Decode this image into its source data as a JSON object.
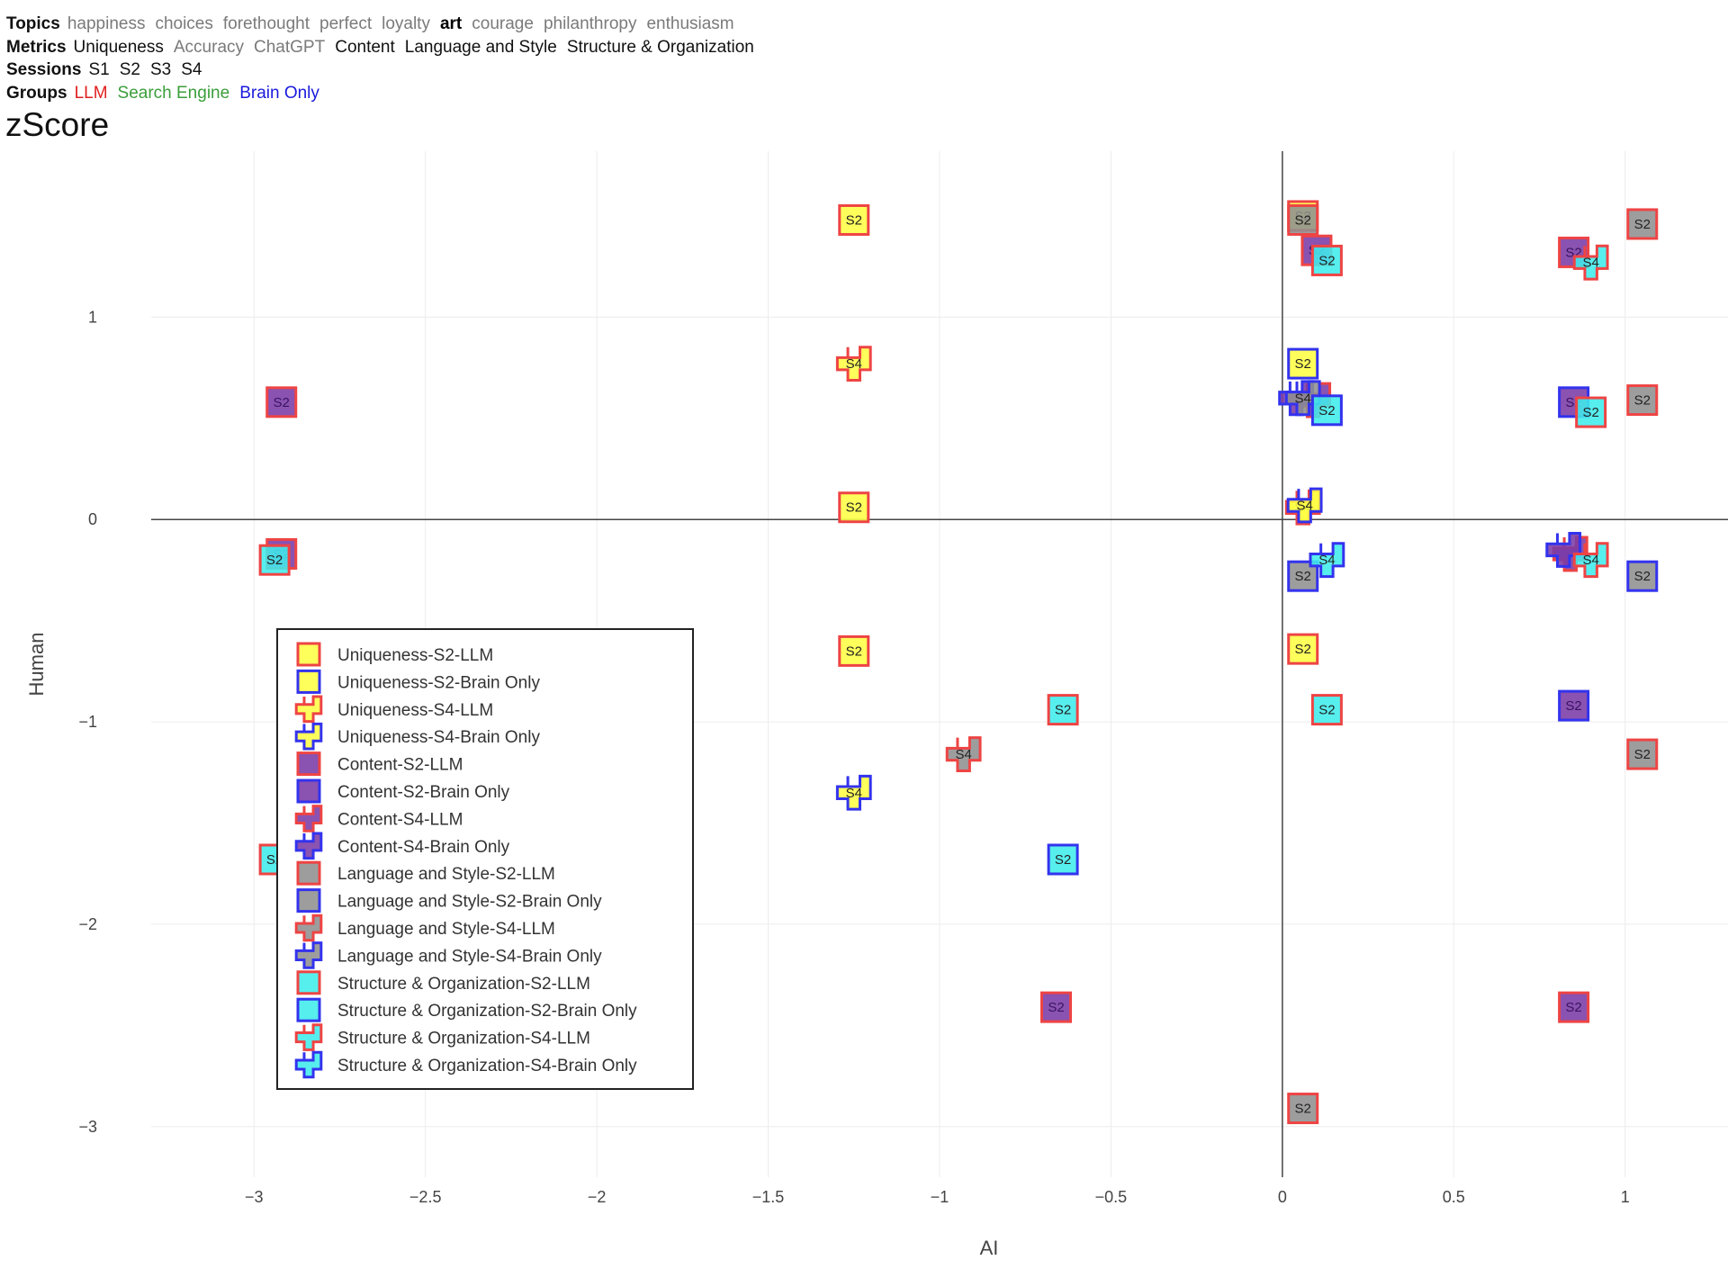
{
  "filters": {
    "topics": {
      "label": "Topics",
      "options": [
        {
          "text": "happiness",
          "state": "dim"
        },
        {
          "text": "choices",
          "state": "dim"
        },
        {
          "text": "forethought",
          "state": "dim"
        },
        {
          "text": "perfect",
          "state": "dim"
        },
        {
          "text": "loyalty",
          "state": "dim"
        },
        {
          "text": "art",
          "state": "bold"
        },
        {
          "text": "courage",
          "state": "dim"
        },
        {
          "text": "philanthropy",
          "state": "dim"
        },
        {
          "text": "enthusiasm",
          "state": "dim"
        }
      ]
    },
    "metrics": {
      "label": "Metrics",
      "options": [
        {
          "text": "Uniqueness",
          "state": "on"
        },
        {
          "text": "Accuracy",
          "state": "dim"
        },
        {
          "text": "ChatGPT",
          "state": "dim"
        },
        {
          "text": "Content",
          "state": "on"
        },
        {
          "text": "Language and Style",
          "state": "on"
        },
        {
          "text": "Structure & Organization",
          "state": "on"
        }
      ]
    },
    "sessions": {
      "label": "Sessions",
      "options": [
        {
          "text": "S1",
          "state": "on"
        },
        {
          "text": "S2",
          "state": "on"
        },
        {
          "text": "S3",
          "state": "on"
        },
        {
          "text": "S4",
          "state": "on"
        }
      ]
    },
    "groups": {
      "label": "Groups",
      "options": [
        {
          "text": "LLM",
          "state": "on",
          "color": "#e02020"
        },
        {
          "text": "Search Engine",
          "state": "on",
          "color": "#3a9e3a"
        },
        {
          "text": "Brain Only",
          "state": "on",
          "color": "#1a1adc"
        }
      ]
    }
  },
  "chart_data": {
    "type": "scatter",
    "title": "zScore",
    "xlabel": "AI",
    "ylabel": "Human",
    "xlim": [
      -3.3,
      1.3
    ],
    "ylim": [
      -3.25,
      1.82
    ],
    "xticks": [
      -3,
      -2.5,
      -2,
      -1.5,
      -1,
      -0.5,
      0,
      0.5,
      1
    ],
    "xtick_labels": [
      "−3",
      "−2.5",
      "−2",
      "−1.5",
      "−1",
      "−0.5",
      "0",
      "0.5",
      "1"
    ],
    "yticks": [
      -3,
      -2,
      -1,
      0,
      1
    ],
    "ytick_labels": [
      "−3",
      "−2",
      "−1",
      "0",
      "1"
    ],
    "grid": true,
    "legend_position": "lower-left",
    "colors": {
      "Uniqueness": "#ffff44",
      "Content": "#7a3aa6",
      "Language and Style": "#8f8f8f",
      "Structure & Organization": "#40ecec",
      "LLM": "#ee4444",
      "Brain Only": "#3333ee"
    },
    "series": [
      {
        "name": "Uniqueness-S2-LLM",
        "metric": "Uniqueness",
        "group": "LLM",
        "session": "S2",
        "symbol": "square",
        "label": "S2",
        "points": [
          {
            "x": -1.25,
            "y": 1.48
          },
          {
            "x": -1.25,
            "y": 0.06
          },
          {
            "x": -1.25,
            "y": -0.65
          },
          {
            "x": 0.06,
            "y": 1.5
          },
          {
            "x": 0.06,
            "y": -0.64
          }
        ]
      },
      {
        "name": "Uniqueness-S2-Brain Only",
        "metric": "Uniqueness",
        "group": "Brain Only",
        "session": "S2",
        "symbol": "square",
        "label": "S2",
        "points": [
          {
            "x": 0.06,
            "y": 0.77
          }
        ]
      },
      {
        "name": "Uniqueness-S4-LLM",
        "metric": "Uniqueness",
        "group": "LLM",
        "session": "S4",
        "symbol": "cross",
        "label": "S4",
        "points": [
          {
            "x": -1.25,
            "y": 0.77
          },
          {
            "x": 0.06,
            "y": 0.06
          }
        ]
      },
      {
        "name": "Uniqueness-S4-Brain Only",
        "metric": "Uniqueness",
        "group": "Brain Only",
        "session": "S4",
        "symbol": "cross",
        "label": "S4",
        "points": [
          {
            "x": -1.25,
            "y": -1.35
          },
          {
            "x": 0.065,
            "y": 0.07
          }
        ]
      },
      {
        "name": "Content-S2-LLM",
        "metric": "Content",
        "group": "LLM",
        "session": "S2",
        "symbol": "square",
        "label": "S2",
        "points": [
          {
            "x": -2.92,
            "y": 0.58
          },
          {
            "x": -2.92,
            "y": -0.17
          },
          {
            "x": 0.1,
            "y": 1.33
          },
          {
            "x": 0.85,
            "y": 1.32
          },
          {
            "x": -0.66,
            "y": -2.41
          },
          {
            "x": 0.85,
            "y": -2.41
          }
        ]
      },
      {
        "name": "Content-S2-Brain Only",
        "metric": "Content",
        "group": "Brain Only",
        "session": "S2",
        "symbol": "square",
        "label": "S2",
        "points": [
          {
            "x": 0.85,
            "y": 0.58
          },
          {
            "x": 0.85,
            "y": -0.92
          }
        ]
      },
      {
        "name": "Content-S4-LLM",
        "metric": "Content",
        "group": "LLM",
        "session": "S4",
        "symbol": "cross",
        "label": "",
        "points": [
          {
            "x": 0.84,
            "y": -0.17
          },
          {
            "x": 0.09,
            "y": 0.59
          }
        ]
      },
      {
        "name": "Content-S4-Brain Only",
        "metric": "Content",
        "group": "Brain Only",
        "session": "S4",
        "symbol": "cross",
        "label": "",
        "points": [
          {
            "x": 0.82,
            "y": -0.15
          },
          {
            "x": 0.04,
            "y": 0.6
          }
        ]
      },
      {
        "name": "Language and Style-S2-LLM",
        "metric": "Language and Style",
        "group": "LLM",
        "session": "S2",
        "symbol": "square",
        "label": "S2",
        "points": [
          {
            "x": 1.05,
            "y": 1.46
          },
          {
            "x": 1.05,
            "y": 0.59
          },
          {
            "x": 1.05,
            "y": -1.16
          },
          {
            "x": 0.06,
            "y": -2.91
          },
          {
            "x": 0.06,
            "y": 1.48
          }
        ]
      },
      {
        "name": "Language and Style-S2-Brain Only",
        "metric": "Language and Style",
        "group": "Brain Only",
        "session": "S2",
        "symbol": "square",
        "label": "S2",
        "points": [
          {
            "x": 0.06,
            "y": -0.28
          },
          {
            "x": 1.05,
            "y": -0.28
          }
        ]
      },
      {
        "name": "Language and Style-S4-LLM",
        "metric": "Language and Style",
        "group": "LLM",
        "session": "S4",
        "symbol": "cross",
        "label": "S4",
        "points": [
          {
            "x": -0.93,
            "y": -1.16
          }
        ]
      },
      {
        "name": "Language and Style-S4-Brain Only",
        "metric": "Language and Style",
        "group": "Brain Only",
        "session": "S4",
        "symbol": "cross",
        "label": "S4",
        "points": [
          {
            "x": 0.06,
            "y": 0.6
          }
        ]
      },
      {
        "name": "Structure & Organization-S2-LLM",
        "metric": "Structure & Organization",
        "group": "LLM",
        "session": "S2",
        "symbol": "square",
        "label": "S2",
        "points": [
          {
            "x": -2.94,
            "y": -0.2
          },
          {
            "x": -2.94,
            "y": -1.68
          },
          {
            "x": -0.64,
            "y": -0.94
          },
          {
            "x": 0.13,
            "y": -0.94
          },
          {
            "x": 0.13,
            "y": 1.28
          },
          {
            "x": 0.9,
            "y": 0.53
          }
        ]
      },
      {
        "name": "Structure & Organization-S2-Brain Only",
        "metric": "Structure & Organization",
        "group": "Brain Only",
        "session": "S2",
        "symbol": "square",
        "label": "S2",
        "points": [
          {
            "x": -0.64,
            "y": -1.68
          },
          {
            "x": 0.13,
            "y": 0.54
          }
        ]
      },
      {
        "name": "Structure & Organization-S4-LLM",
        "metric": "Structure & Organization",
        "group": "LLM",
        "session": "S4",
        "symbol": "cross",
        "label": "S4",
        "points": [
          {
            "x": 0.9,
            "y": 1.27
          },
          {
            "x": 0.9,
            "y": -0.2
          }
        ]
      },
      {
        "name": "Structure & Organization-S4-Brain Only",
        "metric": "Structure & Organization",
        "group": "Brain Only",
        "session": "S4",
        "symbol": "cross",
        "label": "S4",
        "points": [
          {
            "x": 0.13,
            "y": -0.2
          }
        ]
      }
    ]
  }
}
